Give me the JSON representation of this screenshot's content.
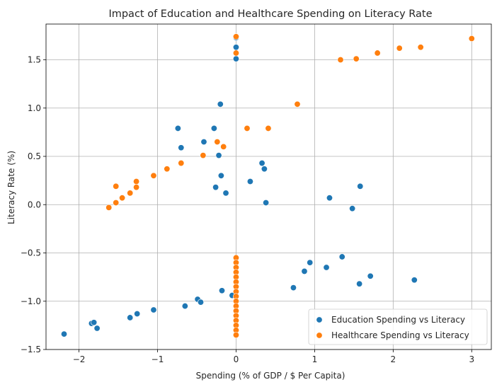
{
  "chart_data": {
    "type": "scatter",
    "title": "Impact of Education and Healthcare Spending on Literacy Rate",
    "xlabel": "Spending (% of GDP / $ Per Capita)",
    "ylabel": "Literacy Rate (%)",
    "xlim": [
      -2.42,
      3.25
    ],
    "ylim": [
      -1.5,
      1.87
    ],
    "xticks": [
      -2,
      -1,
      0,
      1,
      2,
      3
    ],
    "yticks": [
      -1.5,
      -1.0,
      -0.5,
      0.0,
      0.5,
      1.0,
      1.5
    ],
    "xtick_labels": [
      "−2",
      "−1",
      "0",
      "1",
      "2",
      "3"
    ],
    "ytick_labels": [
      "−1.5",
      "−1.0",
      "−0.5",
      "0.0",
      "0.5",
      "1.0",
      "1.5"
    ],
    "grid": true,
    "legend_position": "lower-right",
    "series": [
      {
        "name": "Education Spending vs Literacy",
        "color": "#1f77b4",
        "points": [
          [
            -2.19,
            -1.34
          ],
          [
            -1.84,
            -1.23
          ],
          [
            -1.81,
            -1.22
          ],
          [
            -1.77,
            -1.28
          ],
          [
            -1.35,
            -1.17
          ],
          [
            -1.26,
            -1.13
          ],
          [
            -1.05,
            -1.09
          ],
          [
            -0.65,
            -1.05
          ],
          [
            -0.49,
            -0.98
          ],
          [
            -0.45,
            -1.01
          ],
          [
            -0.18,
            -0.89
          ],
          [
            -0.05,
            -0.94
          ],
          [
            0.73,
            -0.86
          ],
          [
            0.87,
            -0.69
          ],
          [
            0.94,
            -0.6
          ],
          [
            1.15,
            -0.65
          ],
          [
            1.35,
            -0.54
          ],
          [
            1.57,
            -0.82
          ],
          [
            1.71,
            -0.74
          ],
          [
            2.27,
            -0.78
          ],
          [
            1.19,
            0.07
          ],
          [
            1.48,
            -0.04
          ],
          [
            1.58,
            0.19
          ],
          [
            -0.26,
            0.18
          ],
          [
            -0.13,
            0.12
          ],
          [
            -0.19,
            0.3
          ],
          [
            0.18,
            0.24
          ],
          [
            0.38,
            0.02
          ],
          [
            0.33,
            0.43
          ],
          [
            0.36,
            0.37
          ],
          [
            -0.7,
            0.59
          ],
          [
            -0.41,
            0.65
          ],
          [
            -0.22,
            0.51
          ],
          [
            -0.74,
            0.79
          ],
          [
            -0.28,
            0.79
          ],
          [
            -0.2,
            1.04
          ],
          [
            0.0,
            1.51
          ],
          [
            0.0,
            1.63
          ],
          [
            0.0,
            1.73
          ]
        ]
      },
      {
        "name": "Healthcare Spending vs Literacy",
        "color": "#ff7f0e",
        "points": [
          [
            -1.62,
            -0.03
          ],
          [
            -1.53,
            0.02
          ],
          [
            -1.45,
            0.07
          ],
          [
            -1.35,
            0.12
          ],
          [
            -1.27,
            0.18
          ],
          [
            -1.53,
            0.19
          ],
          [
            -1.27,
            0.24
          ],
          [
            -1.05,
            0.3
          ],
          [
            -0.88,
            0.37
          ],
          [
            -0.7,
            0.43
          ],
          [
            -0.42,
            0.51
          ],
          [
            -0.16,
            0.6
          ],
          [
            -0.24,
            0.65
          ],
          [
            0.14,
            0.79
          ],
          [
            0.41,
            0.79
          ],
          [
            0.78,
            1.04
          ],
          [
            1.33,
            1.5
          ],
          [
            1.53,
            1.51
          ],
          [
            1.8,
            1.57
          ],
          [
            2.08,
            1.62
          ],
          [
            2.35,
            1.63
          ],
          [
            3.0,
            1.72
          ],
          [
            0.0,
            1.57
          ],
          [
            0.0,
            1.74
          ],
          [
            0.0,
            -0.55
          ],
          [
            0.0,
            -0.6
          ],
          [
            0.0,
            -0.65
          ],
          [
            0.0,
            -0.7
          ],
          [
            0.0,
            -0.75
          ],
          [
            0.0,
            -0.8
          ],
          [
            0.0,
            -0.85
          ],
          [
            0.0,
            -0.9
          ],
          [
            0.0,
            -0.95
          ],
          [
            0.0,
            -1.0
          ],
          [
            0.0,
            -1.05
          ],
          [
            0.0,
            -1.1
          ],
          [
            0.0,
            -1.15
          ],
          [
            0.0,
            -1.2
          ],
          [
            0.0,
            -1.25
          ],
          [
            0.0,
            -1.3
          ],
          [
            0.0,
            -1.35
          ]
        ]
      }
    ]
  }
}
